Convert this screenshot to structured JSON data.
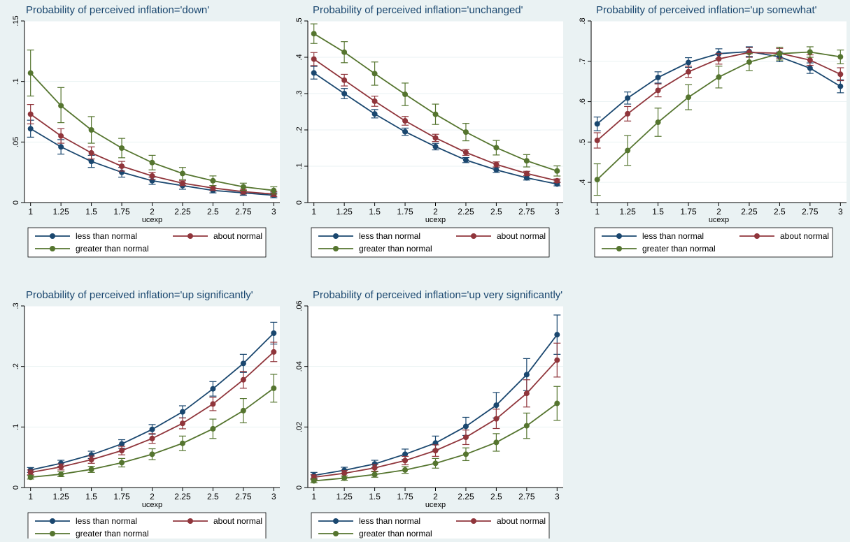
{
  "colors": {
    "background": "#eaf2f3",
    "plot_area": "#ffffff",
    "grid": "#eaf2f3",
    "title": "#1a476f",
    "less_than_normal": "#1a476f",
    "about_normal": "#90353b",
    "greater_than_normal": "#55752f"
  },
  "chart_data": [
    {
      "type": "line",
      "title": "Probability of perceived inflation='down'",
      "xlabel": "ucexp",
      "ylabel": "",
      "x": [
        1,
        1.25,
        1.5,
        1.75,
        2,
        2.25,
        2.5,
        2.75,
        3
      ],
      "x_ticks": [
        "1",
        "1.25",
        "1.5",
        "1.75",
        "2",
        "2.25",
        "2.5",
        "2.75",
        "3"
      ],
      "ylim": [
        0,
        0.15
      ],
      "y_ticks": [
        {
          "v": 0,
          "label": "0"
        },
        {
          "v": 0.05,
          "label": ".05"
        },
        {
          "v": 0.1,
          "label": ".1"
        },
        {
          "v": 0.15,
          "label": ".15"
        }
      ],
      "grid": true,
      "legend": [
        "less than normal",
        "about normal",
        "greater than normal"
      ],
      "series": [
        {
          "name": "less than normal",
          "values": [
            0.061,
            0.046,
            0.034,
            0.025,
            0.018,
            0.014,
            0.01,
            0.008,
            0.006
          ],
          "ci": [
            [
              0.054,
              0.068
            ],
            [
              0.04,
              0.052
            ],
            [
              0.029,
              0.039
            ],
            [
              0.021,
              0.029
            ],
            [
              0.015,
              0.021
            ],
            [
              0.011,
              0.016
            ],
            [
              0.008,
              0.012
            ],
            [
              0.006,
              0.01
            ],
            [
              0.004,
              0.008
            ]
          ]
        },
        {
          "name": "about normal",
          "values": [
            0.073,
            0.055,
            0.041,
            0.03,
            0.022,
            0.016,
            0.012,
            0.009,
            0.007
          ],
          "ci": [
            [
              0.065,
              0.081
            ],
            [
              0.049,
              0.061
            ],
            [
              0.036,
              0.046
            ],
            [
              0.026,
              0.034
            ],
            [
              0.019,
              0.025
            ],
            [
              0.014,
              0.018
            ],
            [
              0.01,
              0.014
            ],
            [
              0.007,
              0.011
            ],
            [
              0.005,
              0.009
            ]
          ]
        },
        {
          "name": "greater than normal",
          "values": [
            0.107,
            0.08,
            0.06,
            0.045,
            0.033,
            0.024,
            0.018,
            0.013,
            0.01
          ],
          "ci": [
            [
              0.088,
              0.126
            ],
            [
              0.066,
              0.095
            ],
            [
              0.049,
              0.071
            ],
            [
              0.037,
              0.053
            ],
            [
              0.027,
              0.039
            ],
            [
              0.019,
              0.029
            ],
            [
              0.014,
              0.022
            ],
            [
              0.01,
              0.016
            ],
            [
              0.007,
              0.013
            ]
          ]
        }
      ]
    },
    {
      "type": "line",
      "title": "Probability of perceived inflation='unchanged'",
      "xlabel": "ucexp",
      "ylabel": "",
      "x": [
        1,
        1.25,
        1.5,
        1.75,
        2,
        2.25,
        2.5,
        2.75,
        3
      ],
      "x_ticks": [
        "1",
        "1.25",
        "1.5",
        "1.75",
        "2",
        "2.25",
        "2.5",
        "2.75",
        "3"
      ],
      "ylim": [
        0,
        0.5
      ],
      "y_ticks": [
        {
          "v": 0,
          "label": "0"
        },
        {
          "v": 0.1,
          "label": ".1"
        },
        {
          "v": 0.2,
          "label": ".2"
        },
        {
          "v": 0.3,
          "label": ".3"
        },
        {
          "v": 0.4,
          "label": ".4"
        },
        {
          "v": 0.5,
          "label": ".5"
        }
      ],
      "grid": true,
      "legend": [
        "less than normal",
        "about normal",
        "greater than normal"
      ],
      "series": [
        {
          "name": "less than normal",
          "values": [
            0.357,
            0.3,
            0.244,
            0.195,
            0.154,
            0.117,
            0.09,
            0.068,
            0.051
          ],
          "ci": [
            [
              0.34,
              0.375
            ],
            [
              0.286,
              0.314
            ],
            [
              0.233,
              0.256
            ],
            [
              0.185,
              0.205
            ],
            [
              0.145,
              0.163
            ],
            [
              0.11,
              0.124
            ],
            [
              0.083,
              0.097
            ],
            [
              0.062,
              0.074
            ],
            [
              0.046,
              0.056
            ]
          ]
        },
        {
          "name": "about normal",
          "values": [
            0.395,
            0.337,
            0.279,
            0.225,
            0.178,
            0.138,
            0.105,
            0.08,
            0.06
          ],
          "ci": [
            [
              0.377,
              0.413
            ],
            [
              0.321,
              0.353
            ],
            [
              0.265,
              0.293
            ],
            [
              0.213,
              0.237
            ],
            [
              0.168,
              0.188
            ],
            [
              0.13,
              0.146
            ],
            [
              0.098,
              0.112
            ],
            [
              0.074,
              0.086
            ],
            [
              0.055,
              0.065
            ]
          ]
        },
        {
          "name": "greater than normal",
          "values": [
            0.465,
            0.414,
            0.355,
            0.298,
            0.243,
            0.194,
            0.151,
            0.115,
            0.087
          ],
          "ci": [
            [
              0.438,
              0.492
            ],
            [
              0.385,
              0.443
            ],
            [
              0.323,
              0.387
            ],
            [
              0.267,
              0.329
            ],
            [
              0.215,
              0.271
            ],
            [
              0.17,
              0.218
            ],
            [
              0.131,
              0.171
            ],
            [
              0.098,
              0.132
            ],
            [
              0.073,
              0.101
            ]
          ]
        }
      ]
    },
    {
      "type": "line",
      "title": "Probability of perceived inflation='up somewhat'",
      "xlabel": "ucexp",
      "ylabel": "",
      "x": [
        1,
        1.25,
        1.5,
        1.75,
        2,
        2.25,
        2.5,
        2.75,
        3
      ],
      "x_ticks": [
        "1",
        "1.25",
        "1.5",
        "1.75",
        "2",
        "2.25",
        "2.5",
        "2.75",
        "3"
      ],
      "ylim": [
        0.35,
        0.8
      ],
      "y_ticks": [
        {
          "v": 0.4,
          "label": ".4"
        },
        {
          "v": 0.5,
          "label": ".5"
        },
        {
          "v": 0.6,
          "label": ".6"
        },
        {
          "v": 0.7,
          "label": ".7"
        },
        {
          "v": 0.8,
          "label": ".8"
        }
      ],
      "grid": true,
      "legend": [
        "less than normal",
        "about normal",
        "greater than normal"
      ],
      "series": [
        {
          "name": "less than normal",
          "values": [
            0.545,
            0.609,
            0.66,
            0.697,
            0.719,
            0.724,
            0.711,
            0.683,
            0.638
          ],
          "ci": [
            [
              0.528,
              0.562
            ],
            [
              0.594,
              0.624
            ],
            [
              0.646,
              0.674
            ],
            [
              0.685,
              0.709
            ],
            [
              0.707,
              0.731
            ],
            [
              0.712,
              0.736
            ],
            [
              0.699,
              0.723
            ],
            [
              0.67,
              0.696
            ],
            [
              0.622,
              0.654
            ]
          ]
        },
        {
          "name": "about normal",
          "values": [
            0.504,
            0.57,
            0.628,
            0.674,
            0.706,
            0.722,
            0.72,
            0.703,
            0.668
          ],
          "ci": [
            [
              0.485,
              0.523
            ],
            [
              0.552,
              0.588
            ],
            [
              0.612,
              0.644
            ],
            [
              0.66,
              0.688
            ],
            [
              0.693,
              0.719
            ],
            [
              0.71,
              0.734
            ],
            [
              0.708,
              0.732
            ],
            [
              0.69,
              0.716
            ],
            [
              0.652,
              0.684
            ]
          ]
        },
        {
          "name": "greater than normal",
          "values": [
            0.407,
            0.479,
            0.549,
            0.611,
            0.661,
            0.698,
            0.719,
            0.723,
            0.711
          ],
          "ci": [
            [
              0.368,
              0.446
            ],
            [
              0.442,
              0.516
            ],
            [
              0.514,
              0.584
            ],
            [
              0.58,
              0.642
            ],
            [
              0.634,
              0.688
            ],
            [
              0.677,
              0.719
            ],
            [
              0.703,
              0.735
            ],
            [
              0.71,
              0.736
            ],
            [
              0.694,
              0.728
            ]
          ]
        }
      ]
    },
    {
      "type": "line",
      "title": "Probability of perceived inflation='up significantly'",
      "xlabel": "ucexp",
      "ylabel": "",
      "x": [
        1,
        1.25,
        1.5,
        1.75,
        2,
        2.25,
        2.5,
        2.75,
        3
      ],
      "x_ticks": [
        "1",
        "1.25",
        "1.5",
        "1.75",
        "2",
        "2.25",
        "2.5",
        "2.75",
        "3"
      ],
      "ylim": [
        0,
        0.3
      ],
      "y_ticks": [
        {
          "v": 0,
          "label": "0"
        },
        {
          "v": 0.1,
          "label": ".1"
        },
        {
          "v": 0.2,
          "label": ".2"
        },
        {
          "v": 0.3,
          "label": ".3"
        }
      ],
      "grid": true,
      "legend": [
        "less than normal",
        "about normal",
        "greater than normal"
      ],
      "series": [
        {
          "name": "less than normal",
          "values": [
            0.029,
            0.04,
            0.054,
            0.072,
            0.096,
            0.125,
            0.163,
            0.205,
            0.255
          ],
          "ci": [
            [
              0.025,
              0.033
            ],
            [
              0.035,
              0.045
            ],
            [
              0.048,
              0.06
            ],
            [
              0.065,
              0.079
            ],
            [
              0.088,
              0.104
            ],
            [
              0.115,
              0.135
            ],
            [
              0.151,
              0.175
            ],
            [
              0.19,
              0.22
            ],
            [
              0.237,
              0.273
            ]
          ]
        },
        {
          "name": "about normal",
          "values": [
            0.025,
            0.034,
            0.046,
            0.061,
            0.081,
            0.106,
            0.138,
            0.178,
            0.224
          ],
          "ci": [
            [
              0.021,
              0.029
            ],
            [
              0.029,
              0.039
            ],
            [
              0.04,
              0.052
            ],
            [
              0.054,
              0.068
            ],
            [
              0.073,
              0.089
            ],
            [
              0.097,
              0.115
            ],
            [
              0.127,
              0.149
            ],
            [
              0.164,
              0.192
            ],
            [
              0.208,
              0.24
            ]
          ]
        },
        {
          "name": "greater than normal",
          "values": [
            0.017,
            0.022,
            0.03,
            0.041,
            0.055,
            0.073,
            0.097,
            0.127,
            0.164
          ],
          "ci": [
            [
              0.014,
              0.02
            ],
            [
              0.018,
              0.026
            ],
            [
              0.025,
              0.035
            ],
            [
              0.034,
              0.048
            ],
            [
              0.046,
              0.064
            ],
            [
              0.061,
              0.085
            ],
            [
              0.081,
              0.113
            ],
            [
              0.107,
              0.147
            ],
            [
              0.141,
              0.187
            ]
          ]
        }
      ]
    },
    {
      "type": "line",
      "title": "Probability of perceived inflation='up very significantly'",
      "xlabel": "ucexp",
      "ylabel": "",
      "x": [
        1,
        1.25,
        1.5,
        1.75,
        2,
        2.25,
        2.5,
        2.75,
        3
      ],
      "x_ticks": [
        "1",
        "1.25",
        "1.5",
        "1.75",
        "2",
        "2.25",
        "2.5",
        "2.75",
        "3"
      ],
      "ylim": [
        0,
        0.06
      ],
      "y_ticks": [
        {
          "v": 0,
          "label": "0"
        },
        {
          "v": 0.02,
          "label": ".02"
        },
        {
          "v": 0.04,
          "label": ".04"
        },
        {
          "v": 0.06,
          "label": ".06"
        }
      ],
      "grid": true,
      "legend": [
        "less than normal",
        "about normal",
        "greater than normal"
      ],
      "series": [
        {
          "name": "less than normal",
          "values": [
            0.004,
            0.0057,
            0.0078,
            0.011,
            0.0147,
            0.0202,
            0.0272,
            0.0373,
            0.0505
          ],
          "ci": [
            [
              0.003,
              0.005
            ],
            [
              0.0047,
              0.0067
            ],
            [
              0.0066,
              0.009
            ],
            [
              0.0093,
              0.0127
            ],
            [
              0.0124,
              0.017
            ],
            [
              0.0172,
              0.0232
            ],
            [
              0.023,
              0.0314
            ],
            [
              0.032,
              0.0426
            ],
            [
              0.044,
              0.057
            ]
          ]
        },
        {
          "name": "about normal",
          "values": [
            0.0034,
            0.0047,
            0.0065,
            0.0089,
            0.0122,
            0.0166,
            0.0227,
            0.0311,
            0.0421
          ],
          "ci": [
            [
              0.0026,
              0.0042
            ],
            [
              0.0038,
              0.0056
            ],
            [
              0.0054,
              0.0076
            ],
            [
              0.0075,
              0.0103
            ],
            [
              0.0103,
              0.0141
            ],
            [
              0.0142,
              0.019
            ],
            [
              0.0195,
              0.0259
            ],
            [
              0.0266,
              0.0356
            ],
            [
              0.0365,
              0.0477
            ]
          ]
        },
        {
          "name": "greater than normal",
          "values": [
            0.0022,
            0.0031,
            0.0043,
            0.0058,
            0.008,
            0.011,
            0.0149,
            0.0204,
            0.0278
          ],
          "ci": [
            [
              0.0016,
              0.0028
            ],
            [
              0.0024,
              0.0038
            ],
            [
              0.0034,
              0.0052
            ],
            [
              0.0047,
              0.0069
            ],
            [
              0.0064,
              0.0096
            ],
            [
              0.0089,
              0.0131
            ],
            [
              0.012,
              0.0178
            ],
            [
              0.0162,
              0.0246
            ],
            [
              0.0222,
              0.0334
            ]
          ]
        }
      ]
    }
  ]
}
